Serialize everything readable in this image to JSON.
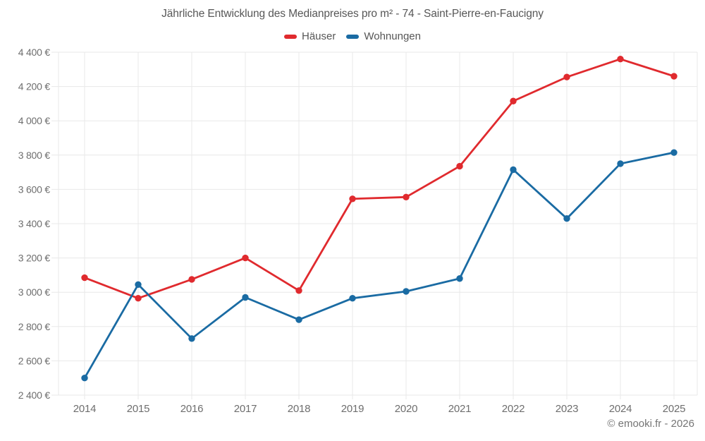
{
  "title": "Jährliche Entwicklung des Medianpreises pro m² - 74 - Saint-Pierre-en-Faucigny",
  "footer": "© emooki.fr - 2026",
  "colors": {
    "hauser_red": "#e02a2e",
    "wohnungen_blue": "#1a6ba3",
    "grid": "#e8e8e8",
    "axis_text": "#6e6e6e",
    "title_text": "#575757"
  },
  "chart_data": {
    "type": "line",
    "title": "Jährliche Entwicklung des Medianpreises pro m² - 74 - Saint-Pierre-en-Faucigny",
    "x": [
      "2014",
      "2015",
      "2016",
      "2017",
      "2018",
      "2019",
      "2020",
      "2021",
      "2022",
      "2023",
      "2024",
      "2025"
    ],
    "series": [
      {
        "name": "Häuser",
        "color": "#e02a2e",
        "values": [
          3085,
          2965,
          3075,
          3200,
          3010,
          3545,
          3555,
          3735,
          4115,
          4255,
          4360,
          4260
        ]
      },
      {
        "name": "Wohnungen",
        "color": "#1a6ba3",
        "values": [
          2500,
          3045,
          2730,
          2970,
          2840,
          2965,
          3005,
          3080,
          3715,
          3430,
          3750,
          3815
        ]
      }
    ],
    "ylim": [
      2400,
      4400
    ],
    "y_step": 200,
    "y_tick_labels": [
      "2 400 €",
      "2 600 €",
      "2 800 €",
      "3 000 €",
      "3 200 €",
      "3 400 €",
      "3 600 €",
      "3 800 €",
      "4 000 €",
      "4 200 €",
      "4 400 €"
    ],
    "xlabel": "",
    "ylabel": "",
    "grid": true,
    "legend_position": "top",
    "marker_radius": 4.7,
    "line_width": 2.8
  }
}
